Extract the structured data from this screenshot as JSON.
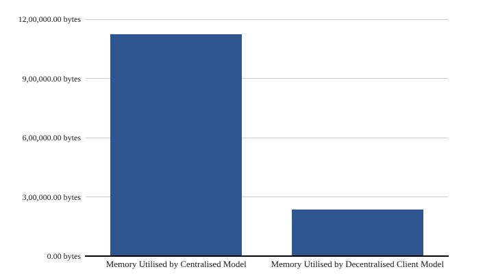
{
  "chart_data": {
    "type": "bar",
    "title": "",
    "unit": "bytes",
    "categories": [
      "Memory Utilised by Centralised Model",
      "Memory Utilised by Decentralised Client Model"
    ],
    "values": [
      1125000,
      236000
    ],
    "ylim": [
      0,
      1200000
    ],
    "yticks": [
      {
        "value": 0,
        "label": "0.00 bytes"
      },
      {
        "value": 300000,
        "label": "3,00,000.00 bytes"
      },
      {
        "value": 600000,
        "label": "6,00,000.00 bytes"
      },
      {
        "value": 900000,
        "label": "9,00,000.00 bytes"
      },
      {
        "value": 1200000,
        "label": "12,00,000.00 bytes"
      }
    ],
    "bar_color": "#2E5590",
    "gridline_color": "#CCCCCC",
    "axis_color": "#000000",
    "text_color": "#1a1a1a",
    "grid": true,
    "legend_position": "none"
  }
}
